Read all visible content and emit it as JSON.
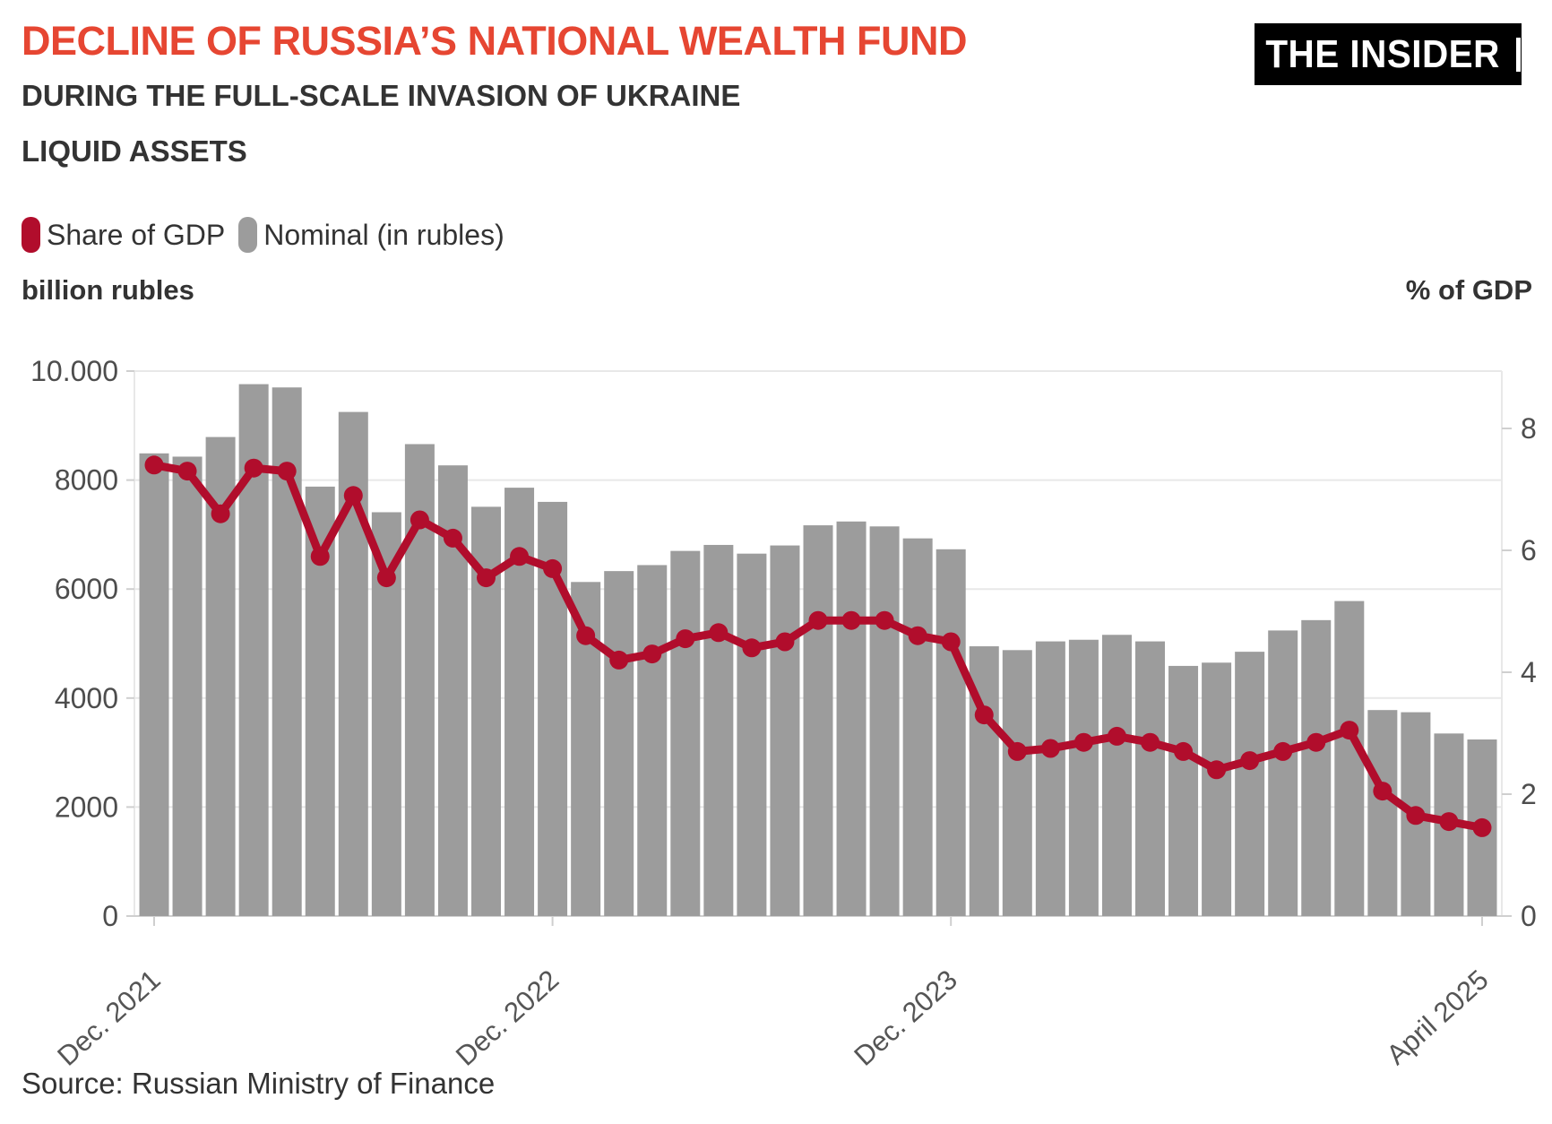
{
  "header": {
    "title": "DECLINE OF RUSSIA’S NATIONAL WEALTH FUND",
    "subtitle": "DURING THE FULL-SCALE INVASION OF UKRAINE",
    "subtitle2": "LIQUID ASSETS",
    "logo_text": "THE INSIDER"
  },
  "legend": [
    {
      "label": "Share of GDP",
      "color": "#b10d2c"
    },
    {
      "label": "Nominal (in rubles)",
      "color": "#9c9c9c"
    }
  ],
  "axes": {
    "left_title": "billion rubles",
    "right_title": "% of GDP",
    "left_tick_labels": [
      "0",
      "2000",
      "4000",
      "6000",
      "8000",
      "10.000"
    ],
    "left_tick_values": [
      0,
      2000,
      4000,
      6000,
      8000,
      10000
    ],
    "right_tick_labels": [
      "0",
      "2",
      "4",
      "6",
      "8"
    ],
    "right_tick_values": [
      0,
      2,
      4,
      6,
      8
    ]
  },
  "source": "Source: Russian Ministry of Finance",
  "colors": {
    "title": "#e64632",
    "dark_text": "#333333",
    "axis_text": "#4d4d4d",
    "xlabel_text": "#555555",
    "bar": "#9c9c9c",
    "line": "#b10d2c",
    "gridline": "#e8e8e8",
    "tick": "#cfcfcf",
    "logo_bg": "#000000",
    "logo_text": "#ffffff"
  },
  "chart_data": {
    "type": "combo",
    "title": "Decline of Russia's National Wealth Fund — liquid assets",
    "x_range_note": "41 monthly values, Dec. 2021 through April 2025",
    "x_tick_labels": [
      {
        "index": 0,
        "label": "Dec. 2021"
      },
      {
        "index": 12,
        "label": "Dec. 2022"
      },
      {
        "index": 24,
        "label": "Dec. 2023"
      },
      {
        "index": 40,
        "label": "April 2025"
      }
    ],
    "left_axis": {
      "label": "billion rubles",
      "range": [
        0,
        10000
      ],
      "grid": true
    },
    "right_axis": {
      "label": "% of GDP",
      "labeled_ticks": [
        0,
        2,
        4,
        6,
        8
      ]
    },
    "legend_position": "top-left",
    "series": [
      {
        "name": "Nominal (in rubles)",
        "type": "bar",
        "unit": "billion rubles",
        "axis": "left",
        "color": "#9c9c9c",
        "values": [
          8490,
          8430,
          8790,
          9760,
          9700,
          7880,
          9250,
          7410,
          8660,
          8270,
          7510,
          7860,
          7600,
          6130,
          6330,
          6440,
          6700,
          6810,
          6650,
          6800,
          7170,
          7240,
          7150,
          6930,
          6730,
          4950,
          4880,
          5040,
          5070,
          5160,
          5040,
          4590,
          4650,
          4850,
          5240,
          5430,
          5780,
          3780,
          3740,
          3350,
          3240
        ]
      },
      {
        "name": "Share of GDP",
        "type": "line",
        "unit": "% of GDP",
        "axis": "right",
        "color": "#b10d2c",
        "values": [
          7.4,
          7.3,
          6.6,
          7.35,
          7.3,
          5.9,
          6.9,
          5.55,
          6.5,
          6.2,
          5.55,
          5.9,
          5.7,
          4.6,
          4.2,
          4.3,
          4.55,
          4.65,
          4.4,
          4.5,
          4.85,
          4.85,
          4.85,
          4.6,
          4.5,
          3.3,
          2.7,
          2.75,
          2.85,
          2.95,
          2.85,
          2.7,
          2.4,
          2.55,
          2.7,
          2.85,
          3.05,
          2.05,
          1.65,
          1.55,
          1.45
        ]
      }
    ]
  }
}
